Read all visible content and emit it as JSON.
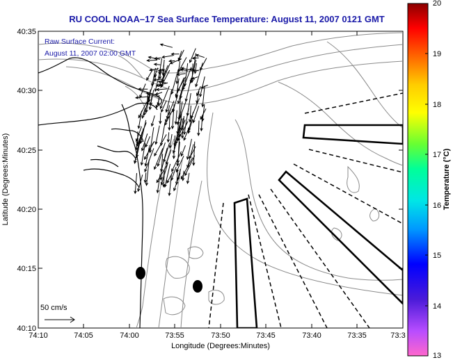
{
  "title": "RU COOL  NOAA–17  Sea Surface Temperature:  August 11, 2007 0121 GMT",
  "annotation": {
    "line1": "Raw Surface Current:",
    "line2": "August 11, 2007 02:00 GMT"
  },
  "scale_label": "50 cm/s",
  "axes": {
    "xlabel": "Longitude (Degrees:Minutes)",
    "ylabel": "Latitude (Degrees:Minutes)",
    "x_ticks": [
      "74:10",
      "74:05",
      "74:00",
      "73:55",
      "73:50",
      "73:45",
      "73:40",
      "73:35",
      "73:3"
    ],
    "y_ticks": [
      "40:35",
      "40:30",
      "40:25",
      "40:20",
      "40:15",
      "40:10"
    ]
  },
  "colorbar": {
    "label": "Temperature (°C)",
    "ticks": [
      "20",
      "19",
      "18",
      "17",
      "16",
      "15",
      "14",
      "13"
    ],
    "range": [
      13,
      20
    ],
    "colors": [
      "#ff66cc",
      "#8a2be2",
      "#0000ff",
      "#00bfff",
      "#00ffcc",
      "#66ff33",
      "#ffff00",
      "#ff9900",
      "#ff0000",
      "#990000"
    ]
  },
  "map_colors": {
    "coast": "#000000",
    "bathymetry": "#8a8a8a",
    "vectors": "#000000",
    "background": "#ffffff"
  }
}
